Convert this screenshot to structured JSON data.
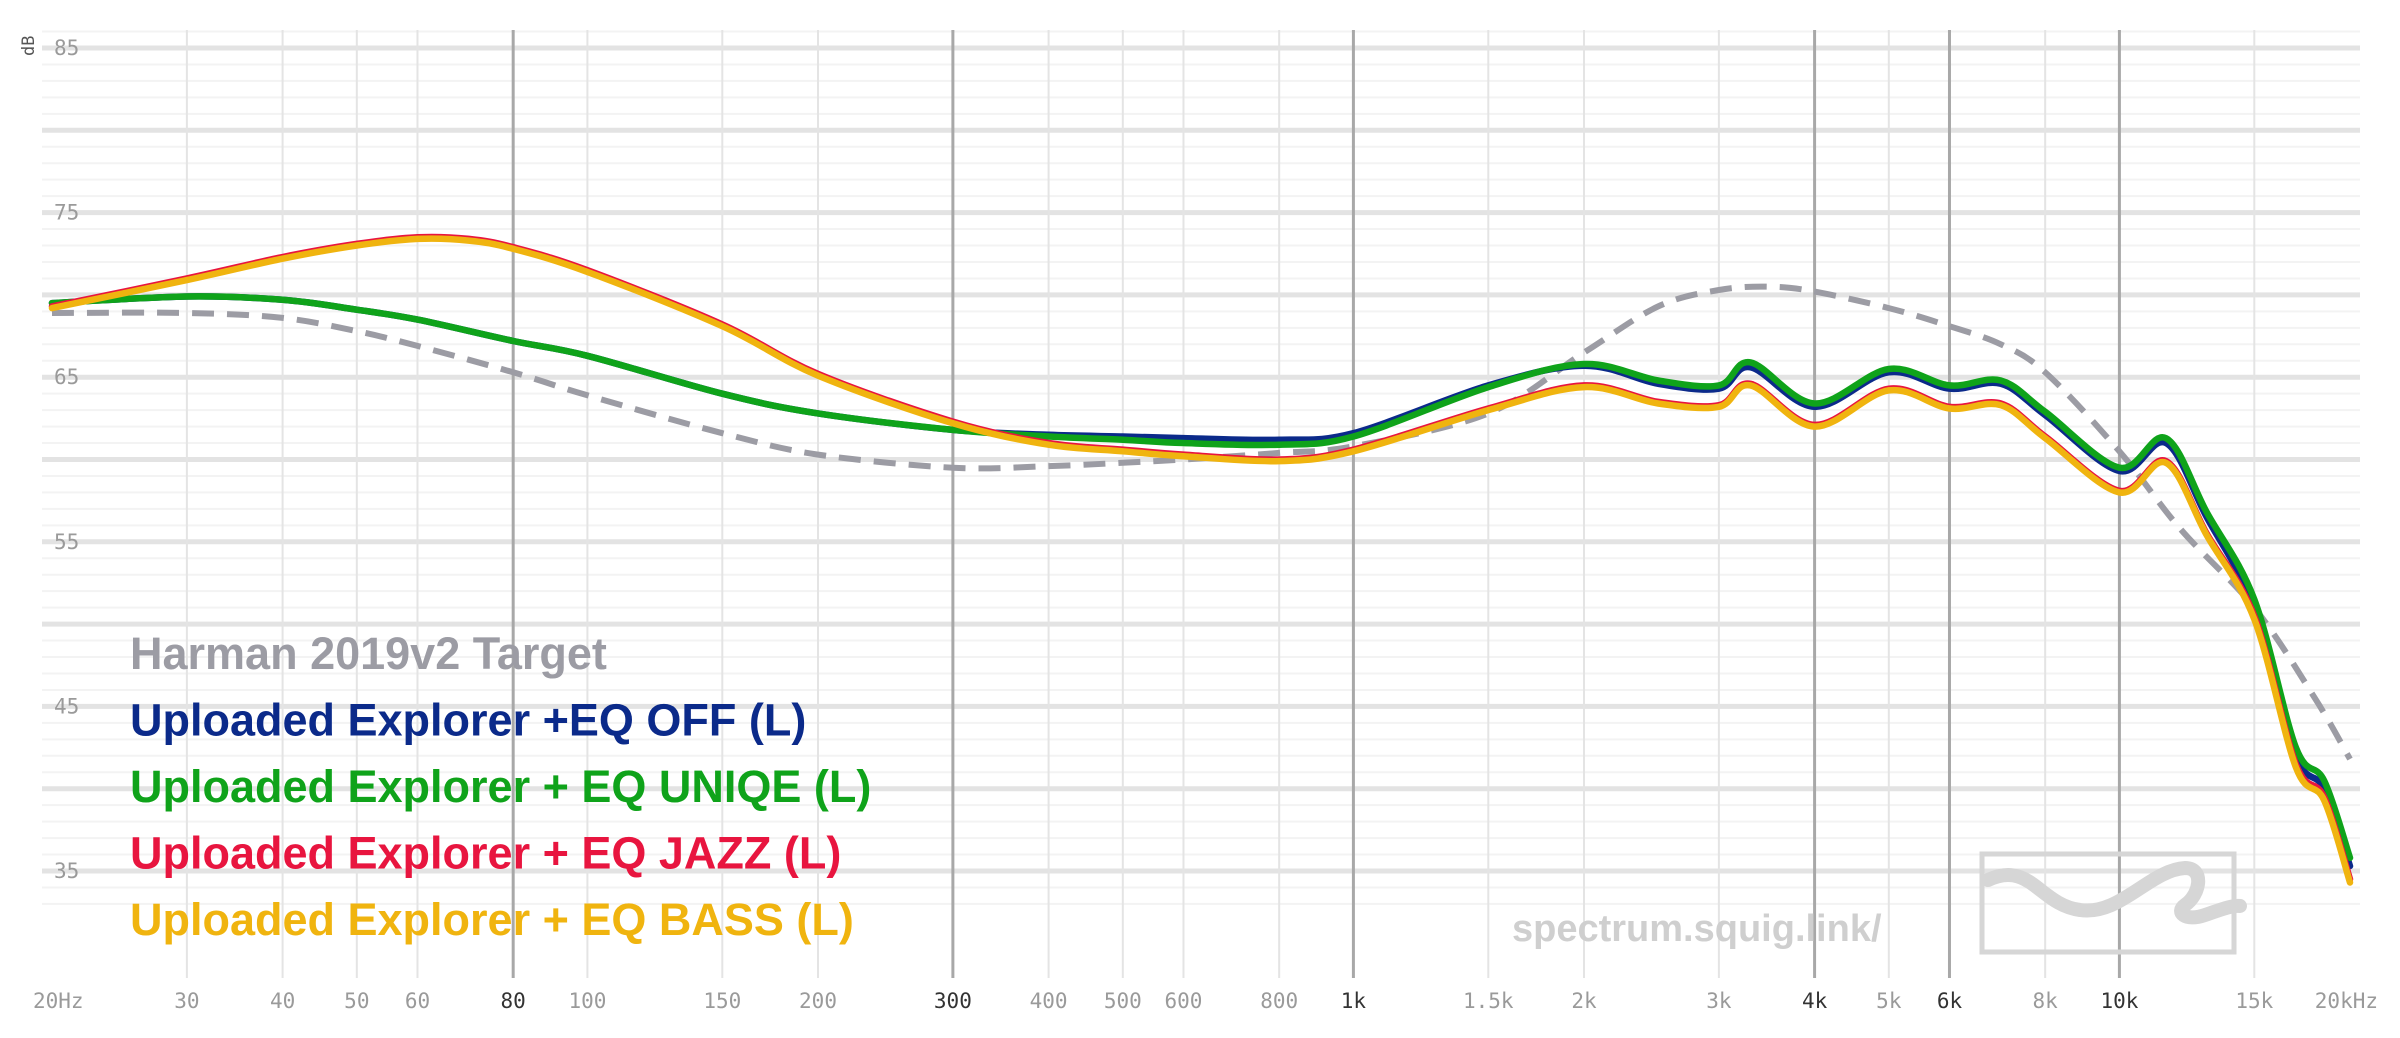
{
  "chart_data": {
    "type": "line",
    "title": "",
    "xlabel": "",
    "ylabel": "dB",
    "xscale": "log",
    "xlim": [
      20,
      20000
    ],
    "ylim": [
      30,
      86
    ],
    "grid": true,
    "legend_position": "bottom-left",
    "watermark": "spectrum.squig.link/",
    "y_ticks": [
      {
        "value": 85,
        "label": "85"
      },
      {
        "value": 75,
        "label": "75"
      },
      {
        "value": 65,
        "label": "65"
      },
      {
        "value": 55,
        "label": "55"
      },
      {
        "value": 45,
        "label": "45"
      },
      {
        "value": 35,
        "label": "35"
      }
    ],
    "x_ticks": [
      {
        "value": 20,
        "label": "20Hz",
        "major": false
      },
      {
        "value": 30,
        "label": "30",
        "major": false
      },
      {
        "value": 40,
        "label": "40",
        "major": false
      },
      {
        "value": 50,
        "label": "50",
        "major": false
      },
      {
        "value": 60,
        "label": "60",
        "major": false
      },
      {
        "value": 80,
        "label": "80",
        "major": true
      },
      {
        "value": 100,
        "label": "100",
        "major": false
      },
      {
        "value": 150,
        "label": "150",
        "major": false
      },
      {
        "value": 200,
        "label": "200",
        "major": false
      },
      {
        "value": 300,
        "label": "300",
        "major": true
      },
      {
        "value": 400,
        "label": "400",
        "major": false
      },
      {
        "value": 500,
        "label": "500",
        "major": false
      },
      {
        "value": 600,
        "label": "600",
        "major": false
      },
      {
        "value": 800,
        "label": "800",
        "major": false
      },
      {
        "value": 1000,
        "label": "1k",
        "major": true
      },
      {
        "value": 1500,
        "label": "1.5k",
        "major": false
      },
      {
        "value": 2000,
        "label": "2k",
        "major": false
      },
      {
        "value": 3000,
        "label": "3k",
        "major": false
      },
      {
        "value": 4000,
        "label": "4k",
        "major": true
      },
      {
        "value": 5000,
        "label": "5k",
        "major": false
      },
      {
        "value": 6000,
        "label": "6k",
        "major": true
      },
      {
        "value": 8000,
        "label": "8k",
        "major": false
      },
      {
        "value": 10000,
        "label": "10k",
        "major": true
      },
      {
        "value": 15000,
        "label": "15k",
        "major": false
      },
      {
        "value": 20000,
        "label": "20kHz",
        "major": false
      }
    ],
    "series": [
      {
        "name": "Harman 2019v2 Target",
        "color": "#9c9ca4",
        "dash": true,
        "x": [
          20,
          30,
          40,
          50,
          60,
          80,
          100,
          150,
          200,
          300,
          400,
          500,
          600,
          800,
          1000,
          1500,
          2000,
          2500,
          3000,
          3500,
          4000,
          5000,
          6000,
          7000,
          8000,
          10000,
          12000,
          15000,
          18000,
          20000
        ],
        "values": [
          68.9,
          68.9,
          68.6,
          67.8,
          66.9,
          65.3,
          63.9,
          61.6,
          60.3,
          59.5,
          59.6,
          59.8,
          60.0,
          60.4,
          60.8,
          62.8,
          66.5,
          69.3,
          70.3,
          70.5,
          70.2,
          69.2,
          68.1,
          67.0,
          65.3,
          60.5,
          55.8,
          51.0,
          45.5,
          41.8
        ]
      },
      {
        "name": "Uploaded Explorer +EQ OFF (L)",
        "color": "#0b2a8a",
        "dash": false,
        "x": [
          20,
          30,
          40,
          50,
          60,
          80,
          100,
          150,
          200,
          300,
          400,
          500,
          600,
          800,
          1000,
          1500,
          2000,
          2500,
          3000,
          3300,
          4000,
          5000,
          6000,
          7000,
          8000,
          10000,
          11500,
          13000,
          15000,
          17000,
          18500,
          20000
        ],
        "values": [
          69.5,
          69.9,
          69.7,
          69.1,
          68.5,
          67.2,
          66.3,
          64.0,
          62.8,
          61.8,
          61.5,
          61.4,
          61.3,
          61.2,
          61.6,
          64.5,
          65.7,
          64.6,
          64.3,
          65.6,
          63.2,
          65.3,
          64.3,
          64.6,
          62.7,
          59.3,
          61.0,
          56.5,
          51.0,
          42.0,
          40.0,
          35.3
        ]
      },
      {
        "name": "Uploaded Explorer + EQ UNIQE (L)",
        "color": "#0fa31a",
        "dash": false,
        "x": [
          20,
          30,
          40,
          50,
          60,
          80,
          100,
          150,
          200,
          300,
          400,
          500,
          600,
          800,
          1000,
          1500,
          2000,
          2500,
          3000,
          3300,
          4000,
          5000,
          6000,
          7000,
          8000,
          10000,
          11500,
          13000,
          15000,
          17000,
          18500,
          20000
        ],
        "values": [
          69.5,
          69.9,
          69.7,
          69.1,
          68.5,
          67.2,
          66.3,
          64.0,
          62.8,
          61.8,
          61.4,
          61.2,
          61.0,
          60.9,
          61.4,
          64.4,
          65.8,
          64.8,
          64.5,
          65.9,
          63.4,
          65.5,
          64.5,
          64.8,
          62.9,
          59.5,
          61.3,
          56.8,
          51.5,
          42.5,
          40.5,
          35.8
        ]
      },
      {
        "name": "Uploaded Explorer + EQ JAZZ (L)",
        "color": "#e8153f",
        "dash": false,
        "x": [
          20,
          30,
          40,
          50,
          60,
          70,
          80,
          100,
          150,
          200,
          300,
          400,
          500,
          600,
          800,
          1000,
          1500,
          2000,
          2500,
          3000,
          3300,
          4000,
          5000,
          6000,
          7000,
          8000,
          10000,
          11500,
          13000,
          15000,
          17000,
          18500,
          20000
        ],
        "values": [
          69.3,
          71.0,
          72.3,
          73.1,
          73.5,
          73.4,
          72.9,
          71.5,
          68.2,
          65.2,
          62.3,
          61.0,
          60.6,
          60.3,
          60.0,
          60.6,
          63.1,
          64.5,
          63.5,
          63.3,
          64.6,
          62.1,
          64.3,
          63.2,
          63.4,
          61.4,
          58.1,
          59.9,
          55.5,
          50.5,
          41.5,
          39.5,
          34.5
        ]
      },
      {
        "name": "Uploaded Explorer + EQ BASS (L)",
        "color": "#f0b40f",
        "dash": false,
        "x": [
          20,
          30,
          40,
          50,
          60,
          70,
          80,
          100,
          150,
          200,
          300,
          400,
          500,
          600,
          800,
          1000,
          1500,
          2000,
          2500,
          3000,
          3300,
          4000,
          5000,
          6000,
          7000,
          8000,
          10000,
          11500,
          13000,
          15000,
          17000,
          18500,
          20000
        ],
        "values": [
          69.2,
          70.9,
          72.2,
          73.0,
          73.4,
          73.3,
          72.8,
          71.4,
          68.1,
          65.1,
          62.2,
          60.9,
          60.5,
          60.2,
          59.9,
          60.5,
          63.0,
          64.4,
          63.4,
          63.2,
          64.5,
          62.0,
          64.2,
          63.1,
          63.3,
          61.3,
          58.0,
          59.8,
          55.4,
          50.3,
          41.3,
          39.3,
          34.3
        ]
      }
    ]
  }
}
